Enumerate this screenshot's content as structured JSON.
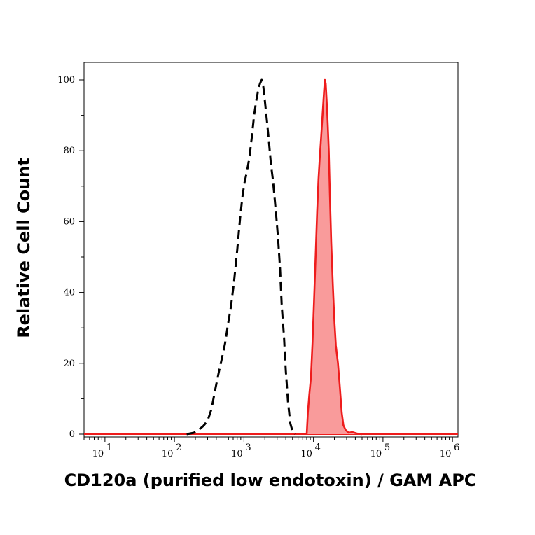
{
  "chart_data": {
    "type": "area",
    "title": "",
    "xlabel": "CD120a (purified low endotoxin) / GAM APC",
    "ylabel": "Relative Cell Count",
    "x_scale": "log",
    "xlim": [
      5,
      1200000
    ],
    "ylim": [
      0,
      100
    ],
    "grid": false,
    "x_ticks": [
      {
        "value": 10,
        "base": "10",
        "exp": "1"
      },
      {
        "value": 100,
        "base": "10",
        "exp": "2"
      },
      {
        "value": 1000,
        "base": "10",
        "exp": "3"
      },
      {
        "value": 10000,
        "base": "10",
        "exp": "4"
      },
      {
        "value": 100000,
        "base": "10",
        "exp": "5"
      },
      {
        "value": 1000000,
        "base": "10",
        "exp": "6"
      }
    ],
    "y_ticks": [
      {
        "value": 0,
        "label": "0"
      },
      {
        "value": 20,
        "label": "20"
      },
      {
        "value": 40,
        "label": "40"
      },
      {
        "value": 60,
        "label": "60"
      },
      {
        "value": 80,
        "label": "80"
      },
      {
        "value": 100,
        "label": "100"
      }
    ],
    "series": [
      {
        "style": "dashed-black-outline",
        "color": "#000000",
        "points": [
          [
            150,
            0
          ],
          [
            190,
            0.4
          ],
          [
            230,
            1.4
          ],
          [
            260,
            2.3
          ],
          [
            300,
            3.8
          ],
          [
            340,
            7
          ],
          [
            390,
            13
          ],
          [
            440,
            18
          ],
          [
            490,
            22
          ],
          [
            540,
            26
          ],
          [
            590,
            31
          ],
          [
            650,
            36
          ],
          [
            720,
            43
          ],
          [
            800,
            52
          ],
          [
            880,
            61
          ],
          [
            950,
            67
          ],
          [
            1020,
            71
          ],
          [
            1100,
            74
          ],
          [
            1200,
            78
          ],
          [
            1300,
            84
          ],
          [
            1400,
            90
          ],
          [
            1500,
            94
          ],
          [
            1600,
            97
          ],
          [
            1700,
            99
          ],
          [
            1800,
            100
          ],
          [
            1900,
            98
          ],
          [
            2000,
            94
          ],
          [
            2150,
            88
          ],
          [
            2300,
            82
          ],
          [
            2450,
            76
          ],
          [
            2600,
            72
          ],
          [
            2750,
            67
          ],
          [
            2900,
            62
          ],
          [
            3100,
            55
          ],
          [
            3300,
            47
          ],
          [
            3500,
            36
          ],
          [
            3750,
            28
          ],
          [
            4000,
            18
          ],
          [
            4300,
            9
          ],
          [
            4650,
            3
          ],
          [
            5000,
            0.8
          ],
          [
            5400,
            0
          ]
        ]
      },
      {
        "style": "red-filled",
        "color": "#ee1c1c",
        "fill": "#f99b9b",
        "points": [
          [
            8000,
            0
          ],
          [
            8300,
            6
          ],
          [
            8700,
            11
          ],
          [
            9200,
            16
          ],
          [
            9700,
            26
          ],
          [
            10200,
            38
          ],
          [
            10800,
            52
          ],
          [
            11300,
            63
          ],
          [
            11800,
            72
          ],
          [
            12300,
            78
          ],
          [
            12800,
            83
          ],
          [
            13300,
            88
          ],
          [
            13800,
            93
          ],
          [
            14200,
            97
          ],
          [
            14600,
            100
          ],
          [
            15000,
            99
          ],
          [
            15500,
            94
          ],
          [
            16000,
            88
          ],
          [
            16600,
            80
          ],
          [
            17200,
            68
          ],
          [
            18000,
            54
          ],
          [
            19000,
            42
          ],
          [
            20000,
            32
          ],
          [
            21000,
            25
          ],
          [
            22500,
            20
          ],
          [
            24000,
            13
          ],
          [
            25500,
            6
          ],
          [
            27000,
            2.5
          ],
          [
            29000,
            1.2
          ],
          [
            32000,
            0.4
          ],
          [
            36000,
            0.6
          ],
          [
            42000,
            0.2
          ],
          [
            50000,
            0
          ]
        ]
      }
    ]
  }
}
